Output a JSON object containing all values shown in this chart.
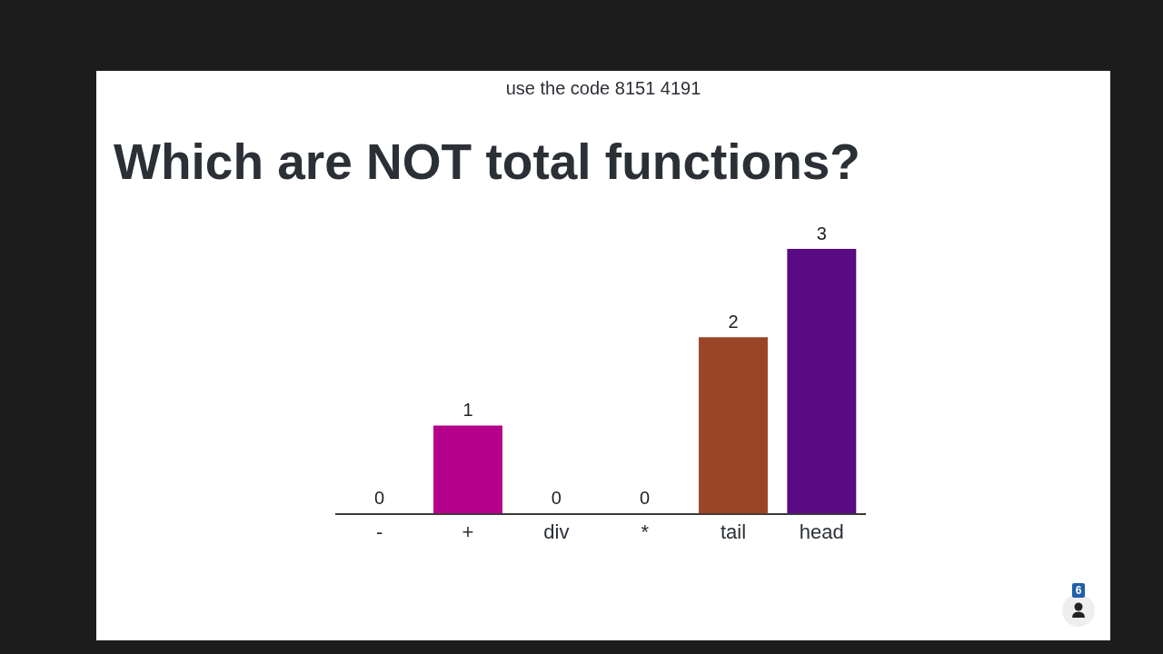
{
  "chart_data": {
    "type": "bar",
    "title": "Which are NOT total functions?",
    "categories": [
      "-",
      "+",
      "div",
      "*",
      "tail",
      "head"
    ],
    "values": [
      0,
      1,
      0,
      0,
      2,
      3
    ],
    "colors": [
      null,
      "#b4008a",
      null,
      null,
      "#9a4526",
      "#5a0a82"
    ],
    "data_labels": true,
    "tick_labels": "x",
    "annotations": [
      "use the code 8151 4191",
      "6"
    ]
  }
}
